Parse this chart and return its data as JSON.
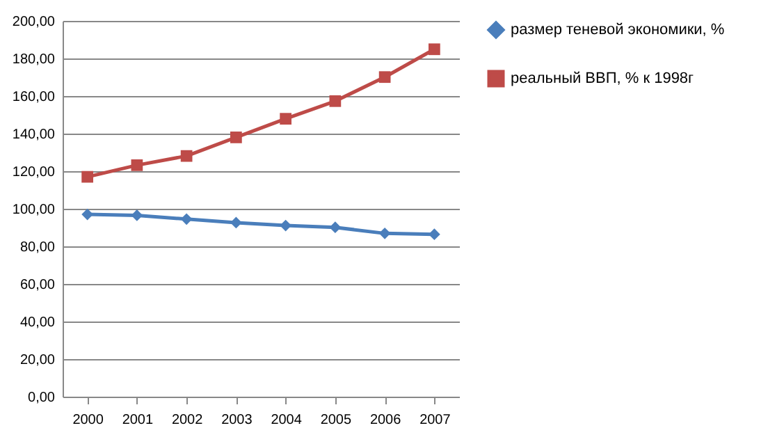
{
  "chart_data": {
    "type": "line",
    "categories": [
      "2000",
      "2001",
      "2002",
      "2003",
      "2004",
      "2005",
      "2006",
      "2007"
    ],
    "series": [
      {
        "name": "размер теневой экономики, %",
        "color": "#4a7ebb",
        "marker": "diamond",
        "values": [
          97,
          96.5,
          94.5,
          92.6,
          91.1,
          90.1,
          86.9,
          86.4
        ]
      },
      {
        "name": "реальный ВВП, % к 1998г",
        "color": "#be4b48",
        "marker": "square",
        "values": [
          117,
          123.2,
          128.1,
          138,
          147.9,
          157.3,
          170.1,
          184.9
        ]
      }
    ],
    "ylim": [
      0,
      200
    ],
    "yticks": [
      {
        "value": 0,
        "label": "0,00"
      },
      {
        "value": 20,
        "label": "20,00"
      },
      {
        "value": 40,
        "label": "40,00"
      },
      {
        "value": 60,
        "label": "60,00"
      },
      {
        "value": 80,
        "label": "80,00"
      },
      {
        "value": 100,
        "label": "100,00"
      },
      {
        "value": 120,
        "label": "120,00"
      },
      {
        "value": 140,
        "label": "140,00"
      },
      {
        "value": 160,
        "label": "160,00"
      },
      {
        "value": 180,
        "label": "180,00"
      },
      {
        "value": 200,
        "label": "200,00"
      }
    ],
    "grid": "y",
    "legend": "right",
    "marker": "circle",
    "line_style": "solid"
  }
}
